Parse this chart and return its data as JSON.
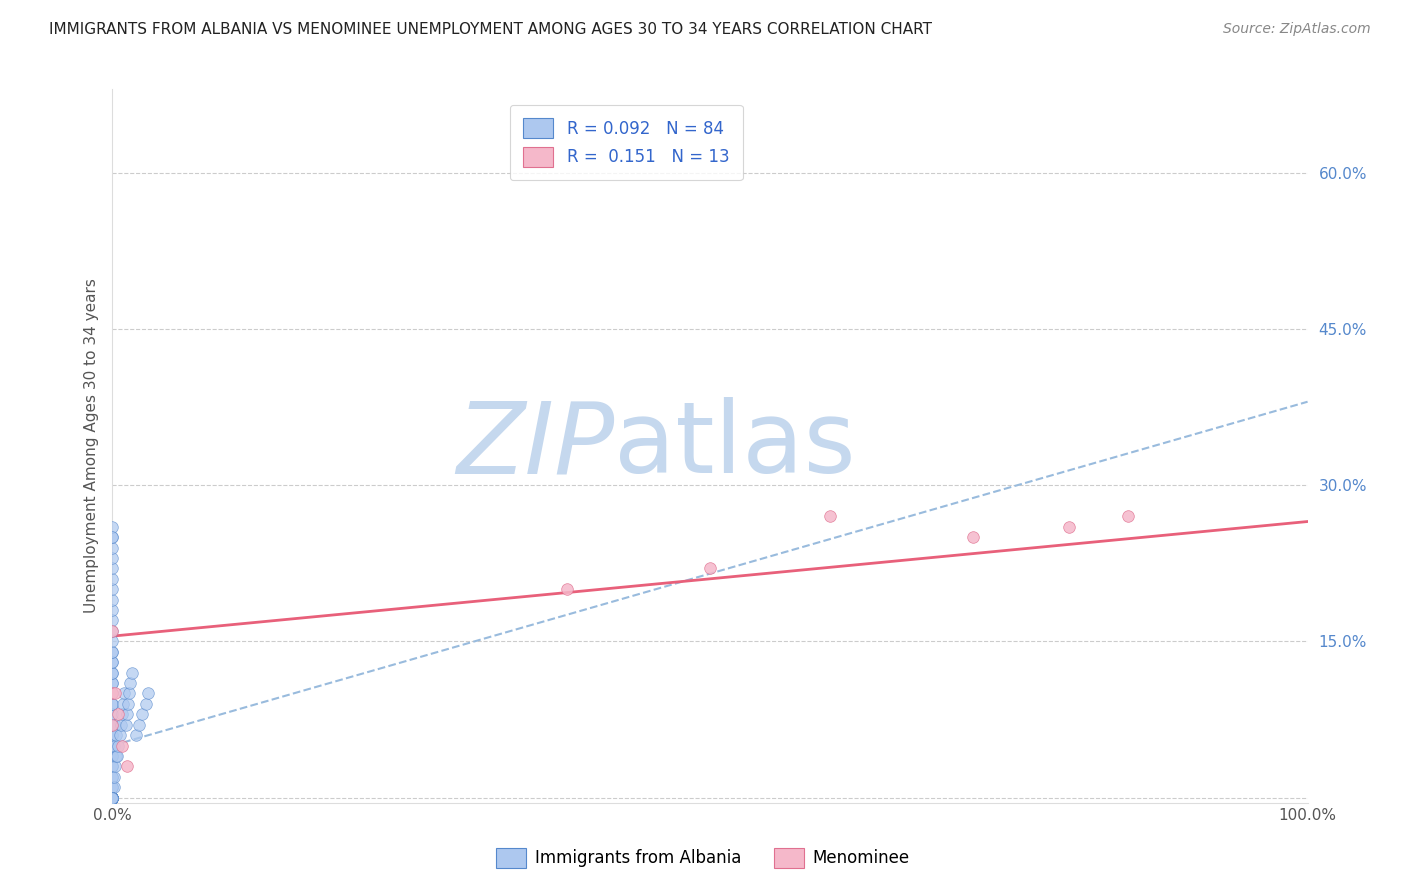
{
  "title": "IMMIGRANTS FROM ALBANIA VS MENOMINEE UNEMPLOYMENT AMONG AGES 30 TO 34 YEARS CORRELATION CHART",
  "source": "Source: ZipAtlas.com",
  "ylabel": "Unemployment Among Ages 30 to 34 years",
  "xlim": [
    0,
    1.0
  ],
  "ylim": [
    -0.005,
    0.68
  ],
  "xtick_positions": [
    0.0,
    1.0
  ],
  "xtick_labels": [
    "0.0%",
    "100.0%"
  ],
  "ytick_positions": [
    0.0,
    0.15,
    0.3,
    0.45,
    0.6
  ],
  "ytick_labels": [
    "",
    "15.0%",
    "30.0%",
    "45.0%",
    "60.0%"
  ],
  "blue_color": "#adc8ef",
  "blue_edge": "#5588cc",
  "pink_color": "#f5b8ca",
  "pink_edge": "#e07090",
  "blue_line_color": "#99bbdd",
  "pink_line_color": "#e8607a",
  "watermark_zip": "ZIP",
  "watermark_atlas": "atlas",
  "watermark_color_zip": "#c5d8ee",
  "watermark_color_atlas": "#c5d8ee",
  "background": "#ffffff",
  "grid_color": "#cccccc",
  "title_color": "#222222",
  "legend_text_color": "#3366cc",
  "albania_x": [
    0.0,
    0.0,
    0.0,
    0.0,
    0.0,
    0.0,
    0.0,
    0.0,
    0.0,
    0.0,
    0.0,
    0.0,
    0.0,
    0.0,
    0.0,
    0.0,
    0.0,
    0.0,
    0.0,
    0.0,
    0.0,
    0.0,
    0.0,
    0.0,
    0.0,
    0.0,
    0.0,
    0.0,
    0.0,
    0.0,
    0.0,
    0.0,
    0.0,
    0.0,
    0.0,
    0.0,
    0.0,
    0.0,
    0.0,
    0.0,
    0.0,
    0.0,
    0.0,
    0.0,
    0.0,
    0.0,
    0.0,
    0.0,
    0.0,
    0.0,
    0.001,
    0.001,
    0.001,
    0.002,
    0.002,
    0.003,
    0.003,
    0.004,
    0.005,
    0.006,
    0.007,
    0.008,
    0.009,
    0.01,
    0.011,
    0.012,
    0.013,
    0.014,
    0.015,
    0.016,
    0.02,
    0.022,
    0.025,
    0.028,
    0.03,
    0.0,
    0.0,
    0.0,
    0.0,
    0.0,
    0.0,
    0.0,
    0.0,
    0.0
  ],
  "albania_y": [
    0.0,
    0.0,
    0.0,
    0.0,
    0.0,
    0.0,
    0.0,
    0.0,
    0.0,
    0.0,
    0.01,
    0.01,
    0.02,
    0.02,
    0.03,
    0.03,
    0.04,
    0.04,
    0.05,
    0.05,
    0.06,
    0.06,
    0.07,
    0.07,
    0.08,
    0.08,
    0.09,
    0.09,
    0.1,
    0.1,
    0.11,
    0.11,
    0.12,
    0.12,
    0.13,
    0.13,
    0.14,
    0.14,
    0.15,
    0.16,
    0.17,
    0.18,
    0.19,
    0.2,
    0.21,
    0.22,
    0.23,
    0.24,
    0.25,
    0.26,
    0.01,
    0.02,
    0.05,
    0.03,
    0.07,
    0.04,
    0.06,
    0.04,
    0.05,
    0.06,
    0.07,
    0.08,
    0.09,
    0.1,
    0.07,
    0.08,
    0.09,
    0.1,
    0.11,
    0.12,
    0.06,
    0.07,
    0.08,
    0.09,
    0.1,
    0.0,
    0.0,
    0.0,
    0.0,
    0.0,
    0.0,
    0.0,
    0.0,
    0.25
  ],
  "menominee_x": [
    0.0,
    0.0,
    0.0,
    0.002,
    0.005,
    0.008,
    0.012,
    0.6,
    0.72,
    0.8,
    0.85,
    0.5,
    0.38
  ],
  "menominee_y": [
    0.16,
    0.1,
    0.07,
    0.1,
    0.08,
    0.05,
    0.03,
    0.27,
    0.25,
    0.26,
    0.27,
    0.22,
    0.2
  ],
  "blue_trend": [
    0.0,
    1.0,
    0.05,
    0.38
  ],
  "pink_trend": [
    0.0,
    1.0,
    0.155,
    0.265
  ],
  "marker_size": 70
}
